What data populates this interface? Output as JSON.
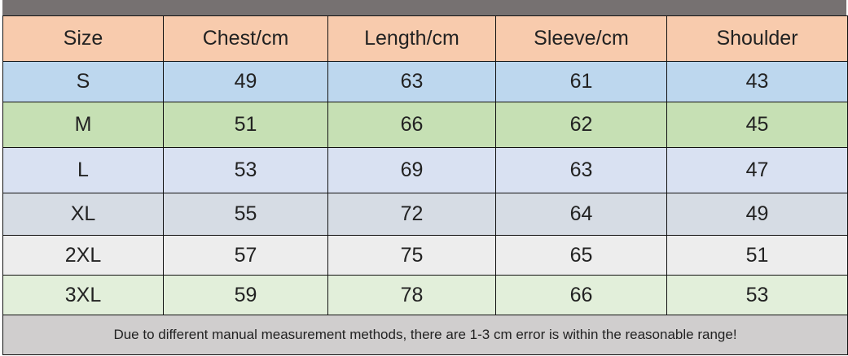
{
  "colors": {
    "top_bar": "#767171",
    "header": "#F8CBAD",
    "footer": "#D0CECE",
    "rows": [
      "#BDD7EE",
      "#C6E0B4",
      "#D9E1F2",
      "#D6DCE4",
      "#EDEDED",
      "#E2EFDA"
    ]
  },
  "headers": [
    "Size",
    "Chest/cm",
    "Length/cm",
    "Sleeve/cm",
    "Shoulder"
  ],
  "rows": [
    [
      "S",
      "49",
      "63",
      "61",
      "43"
    ],
    [
      "M",
      "51",
      "66",
      "62",
      "45"
    ],
    [
      "L",
      "53",
      "69",
      "63",
      "47"
    ],
    [
      "XL",
      "55",
      "72",
      "64",
      "49"
    ],
    [
      "2XL",
      "57",
      "75",
      "65",
      "51"
    ],
    [
      "3XL",
      "59",
      "78",
      "66",
      "53"
    ]
  ],
  "footer": "Due to different manual measurement methods, there are 1-3 cm error is within the reasonable range!"
}
